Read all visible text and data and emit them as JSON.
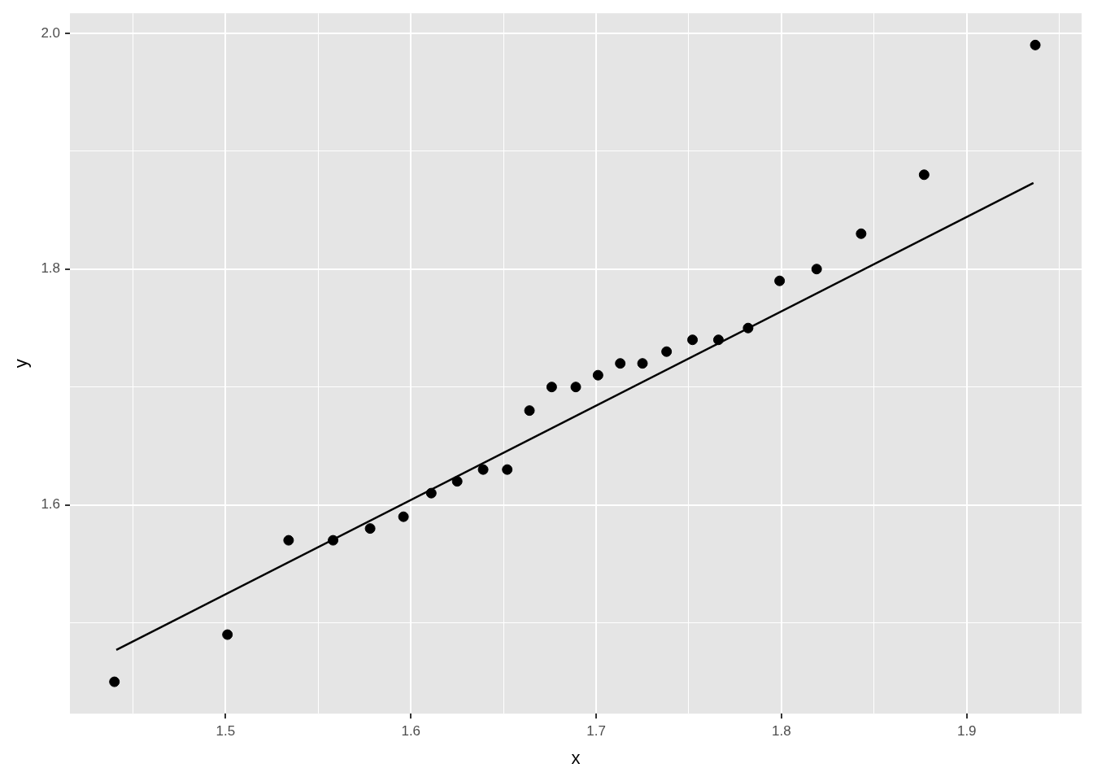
{
  "chart_data": {
    "type": "scatter",
    "xlabel": "x",
    "ylabel": "y",
    "xlim": [
      1.416,
      1.962
    ],
    "ylim": [
      1.423,
      2.017
    ],
    "xticks": [
      {
        "value": 1.45,
        "label": null
      },
      1.5,
      {
        "value": 1.55,
        "label": null
      },
      1.6,
      {
        "value": 1.65,
        "label": null
      },
      1.7,
      {
        "value": 1.75,
        "label": null
      },
      1.8,
      {
        "value": 1.85,
        "label": null
      },
      1.9,
      {
        "value": 1.95,
        "label": null
      }
    ],
    "yticks": [
      {
        "value": 1.5,
        "label": null
      },
      1.6,
      {
        "value": 1.7,
        "label": null
      },
      1.8,
      {
        "value": 1.9,
        "label": null
      },
      {
        "value": 2.0,
        "label": "2.0"
      }
    ],
    "grid": true,
    "legend": false,
    "series": [
      {
        "color": "#000000",
        "marker": "circle",
        "x": [
          1.44,
          1.501,
          1.534,
          1.558,
          1.578,
          1.596,
          1.611,
          1.625,
          1.639,
          1.652,
          1.664,
          1.676,
          1.689,
          1.701,
          1.713,
          1.725,
          1.738,
          1.752,
          1.766,
          1.782,
          1.799,
          1.819,
          1.843,
          1.877,
          1.937
        ],
        "values": [
          1.45,
          1.49,
          1.57,
          1.57,
          1.58,
          1.59,
          1.61,
          1.62,
          1.63,
          1.63,
          1.68,
          1.7,
          1.7,
          1.71,
          1.72,
          1.72,
          1.73,
          1.74,
          1.74,
          1.75,
          1.79,
          1.8,
          1.83,
          1.88,
          1.99
        ]
      },
      {
        "type": "line",
        "color": "#000000",
        "marker": "none",
        "line_style": "solid",
        "x": [
          1.441,
          1.936
        ],
        "values": [
          1.477,
          1.873
        ]
      }
    ]
  }
}
